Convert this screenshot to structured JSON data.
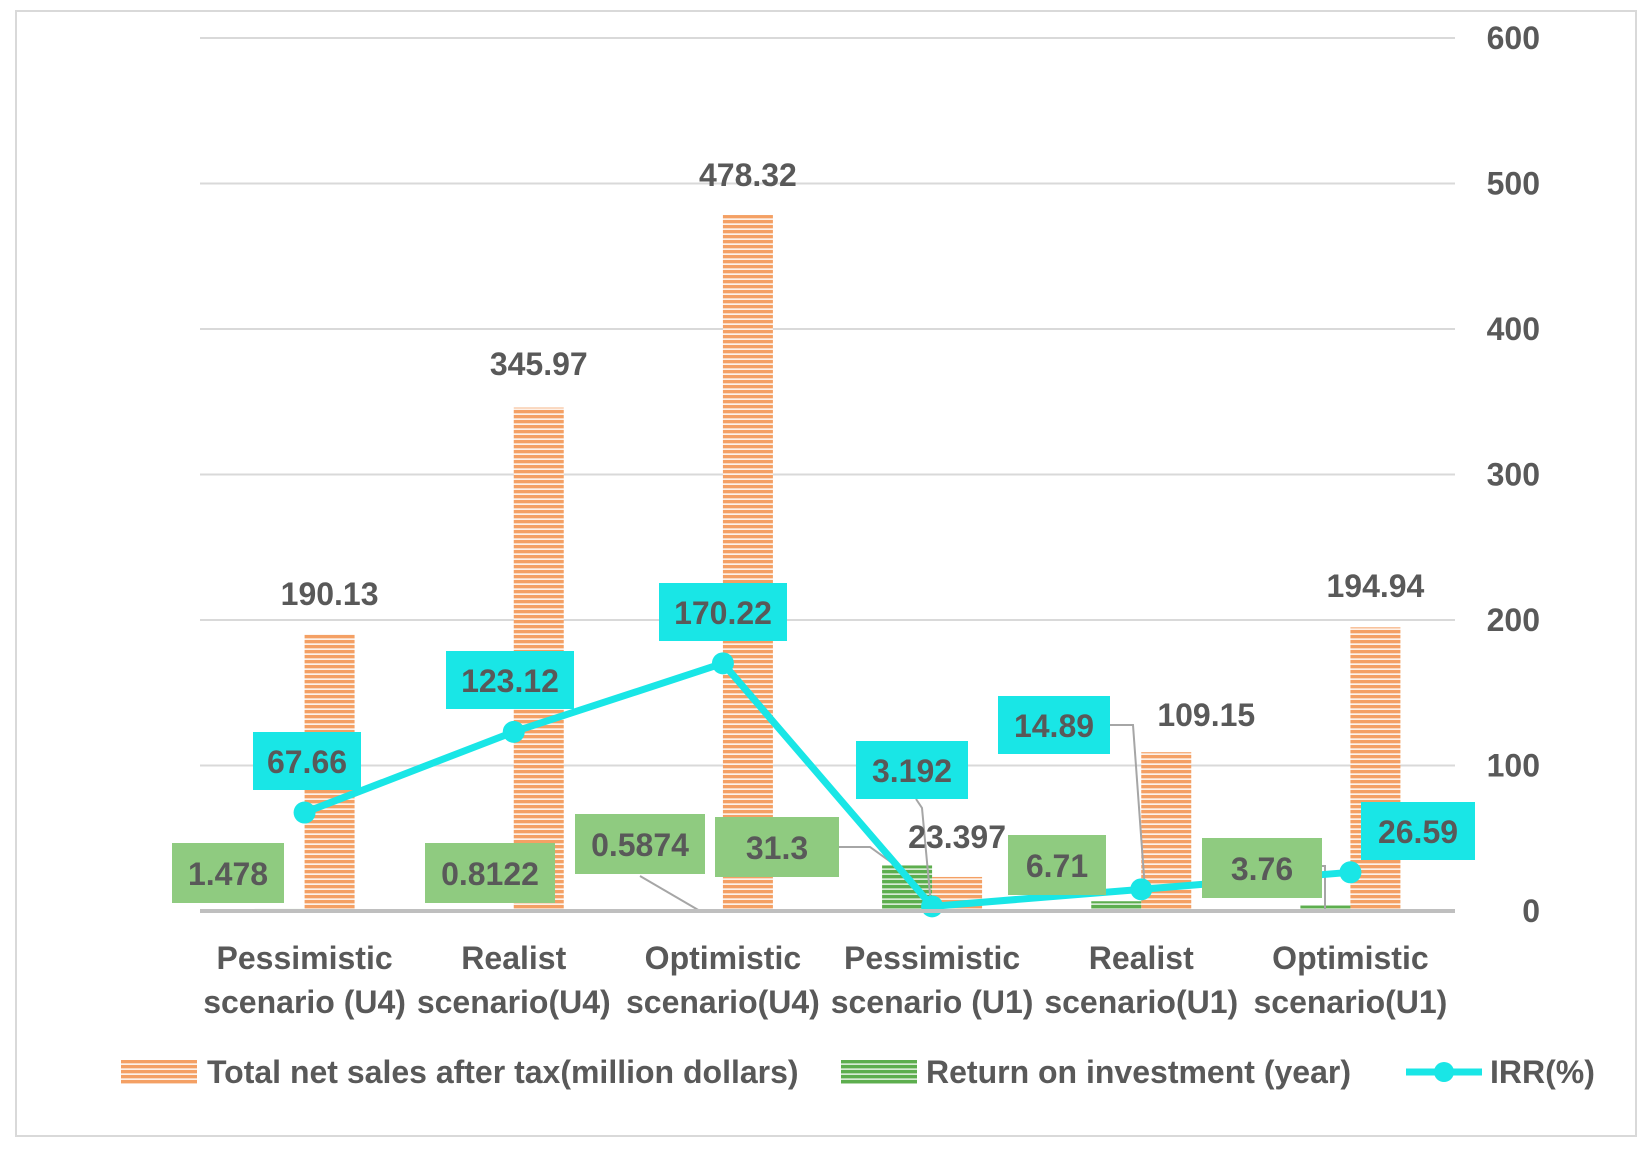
{
  "chart_data": {
    "type": "bar",
    "title": "",
    "xlabel": "",
    "ylabel": "",
    "ylim": [
      0,
      600
    ],
    "yticks": [
      "0",
      "100",
      "200",
      "300",
      "400",
      "500",
      "600"
    ],
    "categories": [
      [
        "Pessimistic",
        "scenario (U4)"
      ],
      [
        "Realist",
        "scenario(U4)"
      ],
      [
        "Optimistic",
        "scenario(U4)"
      ],
      [
        "Pessimistic",
        "scenario (U1)"
      ],
      [
        "Realist",
        "scenario(U1)"
      ],
      [
        "Optimistic",
        "scenario(U1)"
      ]
    ],
    "series": [
      {
        "name": "Total net sales after tax(million dollars)",
        "kind": "bar",
        "color": "#F4A064",
        "values": [
          190.13,
          345.97,
          478.32,
          23.397,
          109.15,
          194.94
        ],
        "labels": [
          "190.13",
          "345.97",
          "478.32",
          "23.397",
          "109.15",
          "194.94"
        ]
      },
      {
        "name": "Return on investment (year)",
        "kind": "bar",
        "color": "#5DAE4E",
        "values": [
          1.478,
          0.8122,
          0.5874,
          31.3,
          6.71,
          3.76
        ],
        "labels": [
          "1.478",
          "0.8122",
          "0.5874",
          "31.3",
          "6.71",
          "3.76"
        ]
      },
      {
        "name": "IRR(%)",
        "kind": "line",
        "color": "#19E6E6",
        "values": [
          67.66,
          123.12,
          170.22,
          3.192,
          14.89,
          26.59
        ],
        "labels": [
          "67.66",
          "123.12",
          "170.22",
          "3.192",
          "14.89",
          "26.59"
        ]
      }
    ],
    "legend": {
      "position": "bottom",
      "entries": [
        "Total net sales after tax(million dollars)",
        "Return on investment (year)",
        "IRR(%)"
      ]
    },
    "grid": true,
    "colors": {
      "grid": "#D9D9D9",
      "axis": "#BFBFBF",
      "text": "#595959",
      "roi_label_bg": "#8FCB80",
      "irr_label_bg": "#19E6E6",
      "leader": "#A6A6A6",
      "frame": "#D9D9D9"
    }
  }
}
